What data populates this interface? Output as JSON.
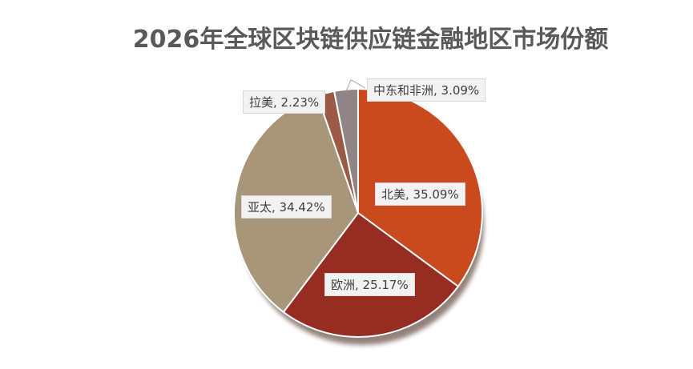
{
  "chart_data": {
    "type": "pie",
    "title": "2026年全球区块链供应链金融地区市场份额",
    "slices": [
      {
        "name": "北美",
        "value": 35.09,
        "label": "北美, 35.09%",
        "color": "#c84a1e"
      },
      {
        "name": "欧洲",
        "value": 25.17,
        "label": "欧洲, 25.17%",
        "color": "#962c22"
      },
      {
        "name": "亚太",
        "value": 34.42,
        "label": "亚太, 34.42%",
        "color": "#a8967a"
      },
      {
        "name": "拉美",
        "value": 2.23,
        "label": "拉美, 2.23%",
        "color": "#9a5a46"
      },
      {
        "name": "中东和非洲",
        "value": 3.09,
        "label": "中东和非洲, 3.09%",
        "color": "#918484"
      }
    ]
  }
}
